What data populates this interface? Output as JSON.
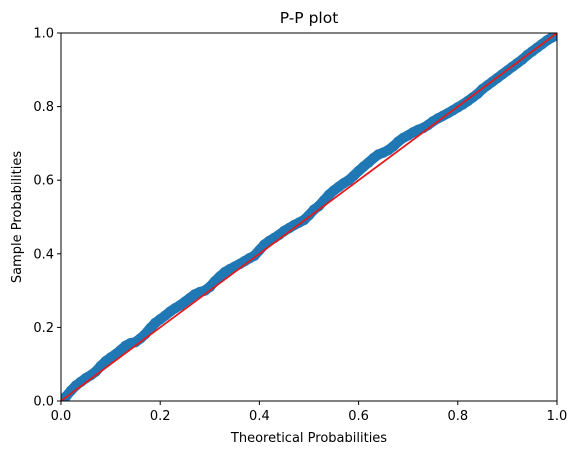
{
  "chart_data": {
    "type": "scatter",
    "title": "P-P plot",
    "xlabel": "Theoretical Probabilities",
    "ylabel": "Sample Probabilities",
    "xlim": [
      0,
      1
    ],
    "ylim": [
      0,
      1
    ],
    "xticks": [
      "0.0",
      "0.2",
      "0.4",
      "0.6",
      "0.8",
      "1.0"
    ],
    "yticks": [
      "0.0",
      "0.2",
      "0.4",
      "0.6",
      "0.8",
      "1.0"
    ],
    "grid": false,
    "series": [
      {
        "type": "scatter",
        "color": "#1f77b4",
        "points": [
          [
            0.0,
            0.0
          ],
          [
            0.01,
            0.012
          ],
          [
            0.02,
            0.028
          ],
          [
            0.03,
            0.042
          ],
          [
            0.04,
            0.052
          ],
          [
            0.05,
            0.062
          ],
          [
            0.06,
            0.07
          ],
          [
            0.07,
            0.08
          ],
          [
            0.08,
            0.095
          ],
          [
            0.09,
            0.108
          ],
          [
            0.1,
            0.118
          ],
          [
            0.11,
            0.127
          ],
          [
            0.12,
            0.138
          ],
          [
            0.13,
            0.15
          ],
          [
            0.14,
            0.157
          ],
          [
            0.15,
            0.16
          ],
          [
            0.16,
            0.17
          ],
          [
            0.17,
            0.182
          ],
          [
            0.18,
            0.198
          ],
          [
            0.19,
            0.212
          ],
          [
            0.2,
            0.222
          ],
          [
            0.21,
            0.232
          ],
          [
            0.22,
            0.243
          ],
          [
            0.23,
            0.252
          ],
          [
            0.24,
            0.26
          ],
          [
            0.25,
            0.27
          ],
          [
            0.26,
            0.28
          ],
          [
            0.27,
            0.29
          ],
          [
            0.28,
            0.296
          ],
          [
            0.29,
            0.3
          ],
          [
            0.3,
            0.31
          ],
          [
            0.31,
            0.325
          ],
          [
            0.32,
            0.338
          ],
          [
            0.33,
            0.35
          ],
          [
            0.34,
            0.358
          ],
          [
            0.35,
            0.365
          ],
          [
            0.36,
            0.372
          ],
          [
            0.37,
            0.38
          ],
          [
            0.38,
            0.388
          ],
          [
            0.39,
            0.395
          ],
          [
            0.4,
            0.41
          ],
          [
            0.41,
            0.425
          ],
          [
            0.42,
            0.435
          ],
          [
            0.43,
            0.443
          ],
          [
            0.44,
            0.452
          ],
          [
            0.45,
            0.462
          ],
          [
            0.46,
            0.47
          ],
          [
            0.47,
            0.478
          ],
          [
            0.48,
            0.485
          ],
          [
            0.49,
            0.492
          ],
          [
            0.5,
            0.505
          ],
          [
            0.51,
            0.52
          ],
          [
            0.52,
            0.53
          ],
          [
            0.53,
            0.545
          ],
          [
            0.54,
            0.56
          ],
          [
            0.55,
            0.572
          ],
          [
            0.56,
            0.582
          ],
          [
            0.57,
            0.592
          ],
          [
            0.58,
            0.6
          ],
          [
            0.59,
            0.612
          ],
          [
            0.6,
            0.625
          ],
          [
            0.61,
            0.637
          ],
          [
            0.62,
            0.648
          ],
          [
            0.63,
            0.66
          ],
          [
            0.64,
            0.67
          ],
          [
            0.65,
            0.675
          ],
          [
            0.66,
            0.682
          ],
          [
            0.67,
            0.692
          ],
          [
            0.68,
            0.705
          ],
          [
            0.69,
            0.715
          ],
          [
            0.7,
            0.722
          ],
          [
            0.71,
            0.73
          ],
          [
            0.72,
            0.737
          ],
          [
            0.73,
            0.742
          ],
          [
            0.74,
            0.75
          ],
          [
            0.75,
            0.76
          ],
          [
            0.76,
            0.768
          ],
          [
            0.77,
            0.775
          ],
          [
            0.78,
            0.782
          ],
          [
            0.79,
            0.79
          ],
          [
            0.8,
            0.798
          ],
          [
            0.81,
            0.806
          ],
          [
            0.82,
            0.815
          ],
          [
            0.83,
            0.825
          ],
          [
            0.84,
            0.835
          ],
          [
            0.85,
            0.848
          ],
          [
            0.86,
            0.858
          ],
          [
            0.87,
            0.868
          ],
          [
            0.88,
            0.878
          ],
          [
            0.89,
            0.888
          ],
          [
            0.9,
            0.898
          ],
          [
            0.91,
            0.908
          ],
          [
            0.92,
            0.918
          ],
          [
            0.93,
            0.928
          ],
          [
            0.94,
            0.94
          ],
          [
            0.95,
            0.95
          ],
          [
            0.96,
            0.96
          ],
          [
            0.97,
            0.97
          ],
          [
            0.98,
            0.98
          ],
          [
            0.99,
            0.988
          ],
          [
            1.0,
            0.995
          ]
        ]
      },
      {
        "type": "line",
        "color": "#e41a1c",
        "points": [
          [
            0,
            0
          ],
          [
            1,
            1
          ]
        ]
      }
    ]
  }
}
